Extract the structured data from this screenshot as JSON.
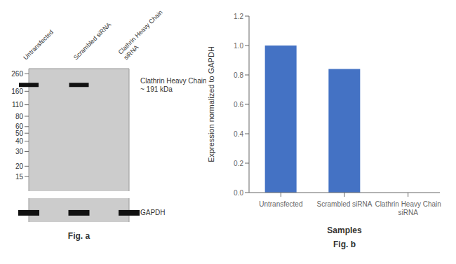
{
  "chart_data": [
    {
      "type": "western_blot",
      "title": "Fig. a",
      "categories": [
        "Untransfected",
        "Scrambled siRNA",
        "Clathrin Heavy Chain\nsiRNA"
      ],
      "series": [
        {
          "name": "Clathrin Heavy Chain\n~ 191 kDa",
          "color": "#111111",
          "values": [
            191,
            191,
            null
          ]
        },
        {
          "name": "GAPDH",
          "color": "#111111",
          "values": [
            37,
            37,
            37
          ]
        }
      ],
      "log": "y",
      "ylim": [
        10,
        300
      ],
      "yticks": [
        260,
        160,
        110,
        80,
        60,
        50,
        40,
        30,
        20,
        15
      ]
    },
    {
      "type": "bar",
      "title": "Fig. b",
      "categories": [
        "Untransfected",
        "Scrambled siRNA",
        "Clathrin Heavy Chain\nsiRNA"
      ],
      "values": [
        1.0,
        0.84,
        0.0
      ],
      "color": "#4472C4",
      "ylim": [
        0,
        1.2
      ],
      "yticks": [
        {
          "value": 0,
          "label": "0.0"
        },
        0.2,
        0.4,
        0.6,
        0.8,
        {
          "value": 1.0,
          "label": "1.0"
        },
        1.2
      ],
      "ylabel": "Expression normalized to GAPDH",
      "xlabel": "Samples"
    }
  ]
}
